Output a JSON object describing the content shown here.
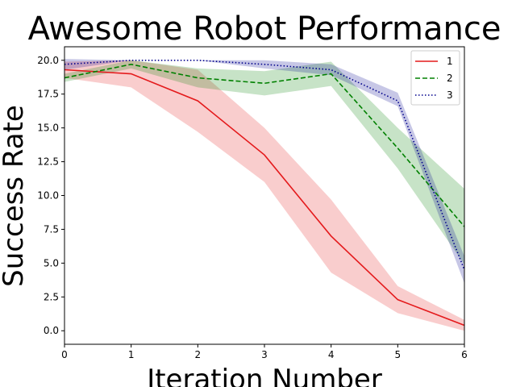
{
  "chart_data": {
    "type": "line",
    "title": "Awesome Robot Performance",
    "xlabel": "Iteration Number",
    "ylabel": "Success Rate",
    "xlim": [
      0,
      6
    ],
    "ylim": [
      -1,
      21
    ],
    "x": [
      0,
      1,
      2,
      3,
      4,
      5,
      6
    ],
    "xticks": [
      "0",
      "1",
      "2",
      "3",
      "4",
      "5",
      "6"
    ],
    "yticks": [
      "0.0",
      "2.5",
      "5.0",
      "7.5",
      "10.0",
      "12.5",
      "15.0",
      "17.5",
      "20.0"
    ],
    "ytick_values": [
      0,
      2.5,
      5,
      7.5,
      10,
      12.5,
      15,
      17.5,
      20
    ],
    "grid": false,
    "legend_position": "top-right",
    "series": [
      {
        "name": "1",
        "color": "#e41a1c",
        "linestyle": "solid",
        "values": [
          19.3,
          19.0,
          17.0,
          13.0,
          7.0,
          2.3,
          0.4
        ],
        "lower": [
          18.7,
          18.0,
          14.7,
          11.0,
          4.3,
          1.3,
          0.0
        ],
        "upper": [
          19.9,
          20.0,
          19.3,
          15.0,
          9.7,
          3.3,
          0.8
        ]
      },
      {
        "name": "2",
        "color": "#008000",
        "linestyle": "dashed",
        "values": [
          18.7,
          19.7,
          18.7,
          18.3,
          19.0,
          13.5,
          7.7
        ],
        "lower": [
          18.4,
          19.4,
          18.0,
          17.4,
          18.1,
          12.0,
          4.9
        ],
        "upper": [
          19.0,
          20.0,
          19.4,
          19.2,
          19.9,
          15.0,
          10.5
        ]
      },
      {
        "name": "3",
        "color": "#00008b",
        "linestyle": "dotted",
        "values": [
          19.7,
          20.0,
          20.0,
          19.7,
          19.3,
          17.0,
          4.5
        ],
        "lower": [
          19.3,
          20.0,
          20.0,
          19.4,
          18.9,
          16.6,
          3.5
        ],
        "upper": [
          20.1,
          20.0,
          20.0,
          20.0,
          19.7,
          17.6,
          5.5
        ]
      }
    ]
  }
}
